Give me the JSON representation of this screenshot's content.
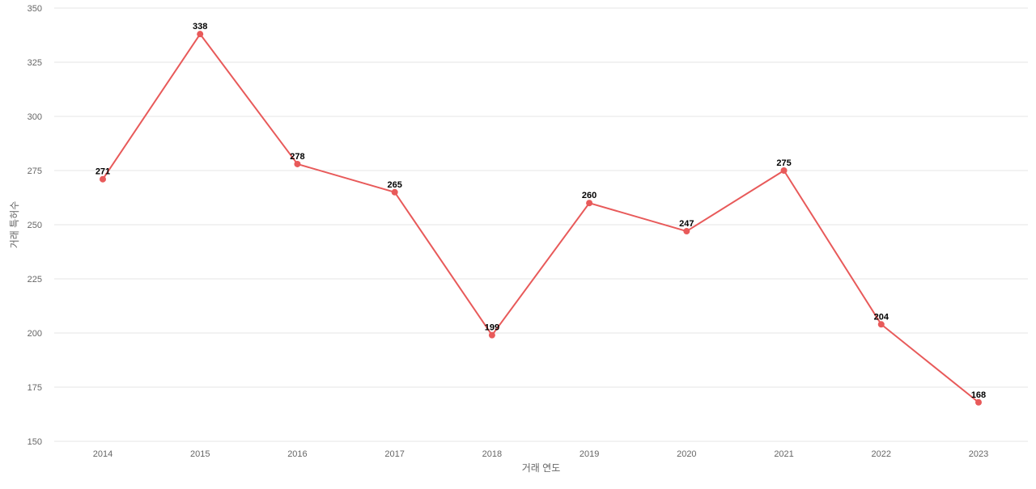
{
  "chart_data": {
    "type": "line",
    "title": "",
    "xlabel": "거래 연도",
    "ylabel": "거래 특허수",
    "x": [
      "2014",
      "2015",
      "2016",
      "2017",
      "2018",
      "2019",
      "2020",
      "2021",
      "2022",
      "2023"
    ],
    "series": [
      {
        "values": [
          271,
          338,
          278,
          265,
          199,
          260,
          247,
          275,
          204,
          168
        ],
        "color": "#e85a5a"
      }
    ],
    "ylim": [
      150,
      350
    ],
    "yticks": [
      150,
      175,
      200,
      225,
      250,
      275,
      300,
      325,
      350
    ],
    "grid": true,
    "data_labels": true,
    "legend": "none"
  }
}
